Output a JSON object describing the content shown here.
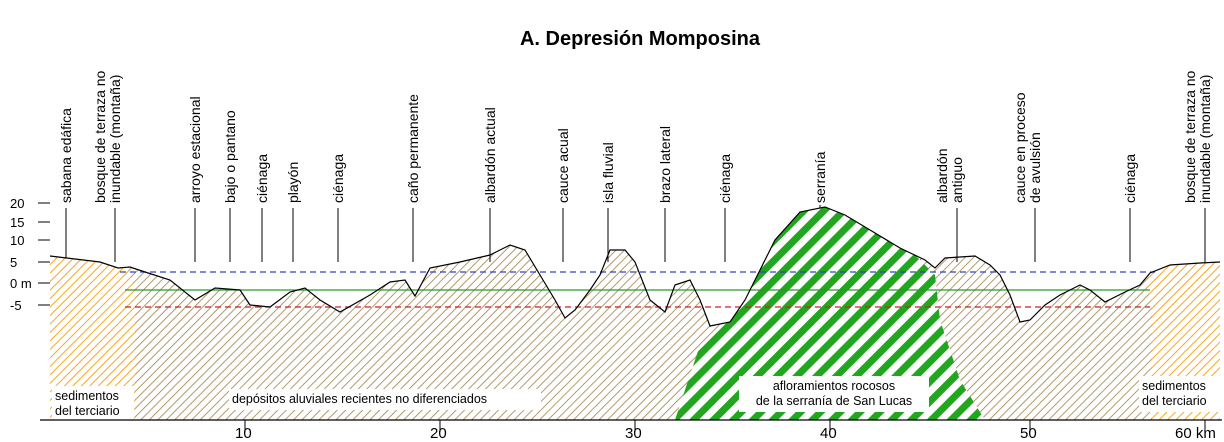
{
  "title": "A. Depresión Momposina",
  "landforms": [
    [
      "sabana edáfica"
    ],
    [
      "bosque de terraza no",
      "inundable (montaña)"
    ],
    [
      "arroyo estacional"
    ],
    [
      "bajo o pantano"
    ],
    [
      "ciénaga"
    ],
    [
      "playón"
    ],
    [
      "ciénaga"
    ],
    [
      "caño permanente"
    ],
    [
      "albardón actual"
    ],
    [
      "cauce acual"
    ],
    [
      "isla fluvial"
    ],
    [
      "brazo  lateral"
    ],
    [
      "ciénaga"
    ],
    [
      "serranía"
    ],
    [
      "albardón",
      "antiguo"
    ],
    [
      "cauce en proceso",
      "de avulsión"
    ],
    [
      "ciénaga"
    ],
    [
      "bosque de terraza no",
      "inundable (montaña)"
    ]
  ],
  "units": [
    [
      "sedimentos",
      "del terciario"
    ],
    [
      "depósitos aluviales recientes no diferenciados"
    ],
    [
      "afloramientos rocosos",
      "de la serranía de San Lucas"
    ],
    [
      "sedimentos",
      "del terciario"
    ]
  ],
  "y_axis": [
    20,
    15,
    10,
    5,
    "0 m",
    -5
  ],
  "x_axis": [
    10,
    20,
    30,
    40,
    50,
    "60 km"
  ]
}
